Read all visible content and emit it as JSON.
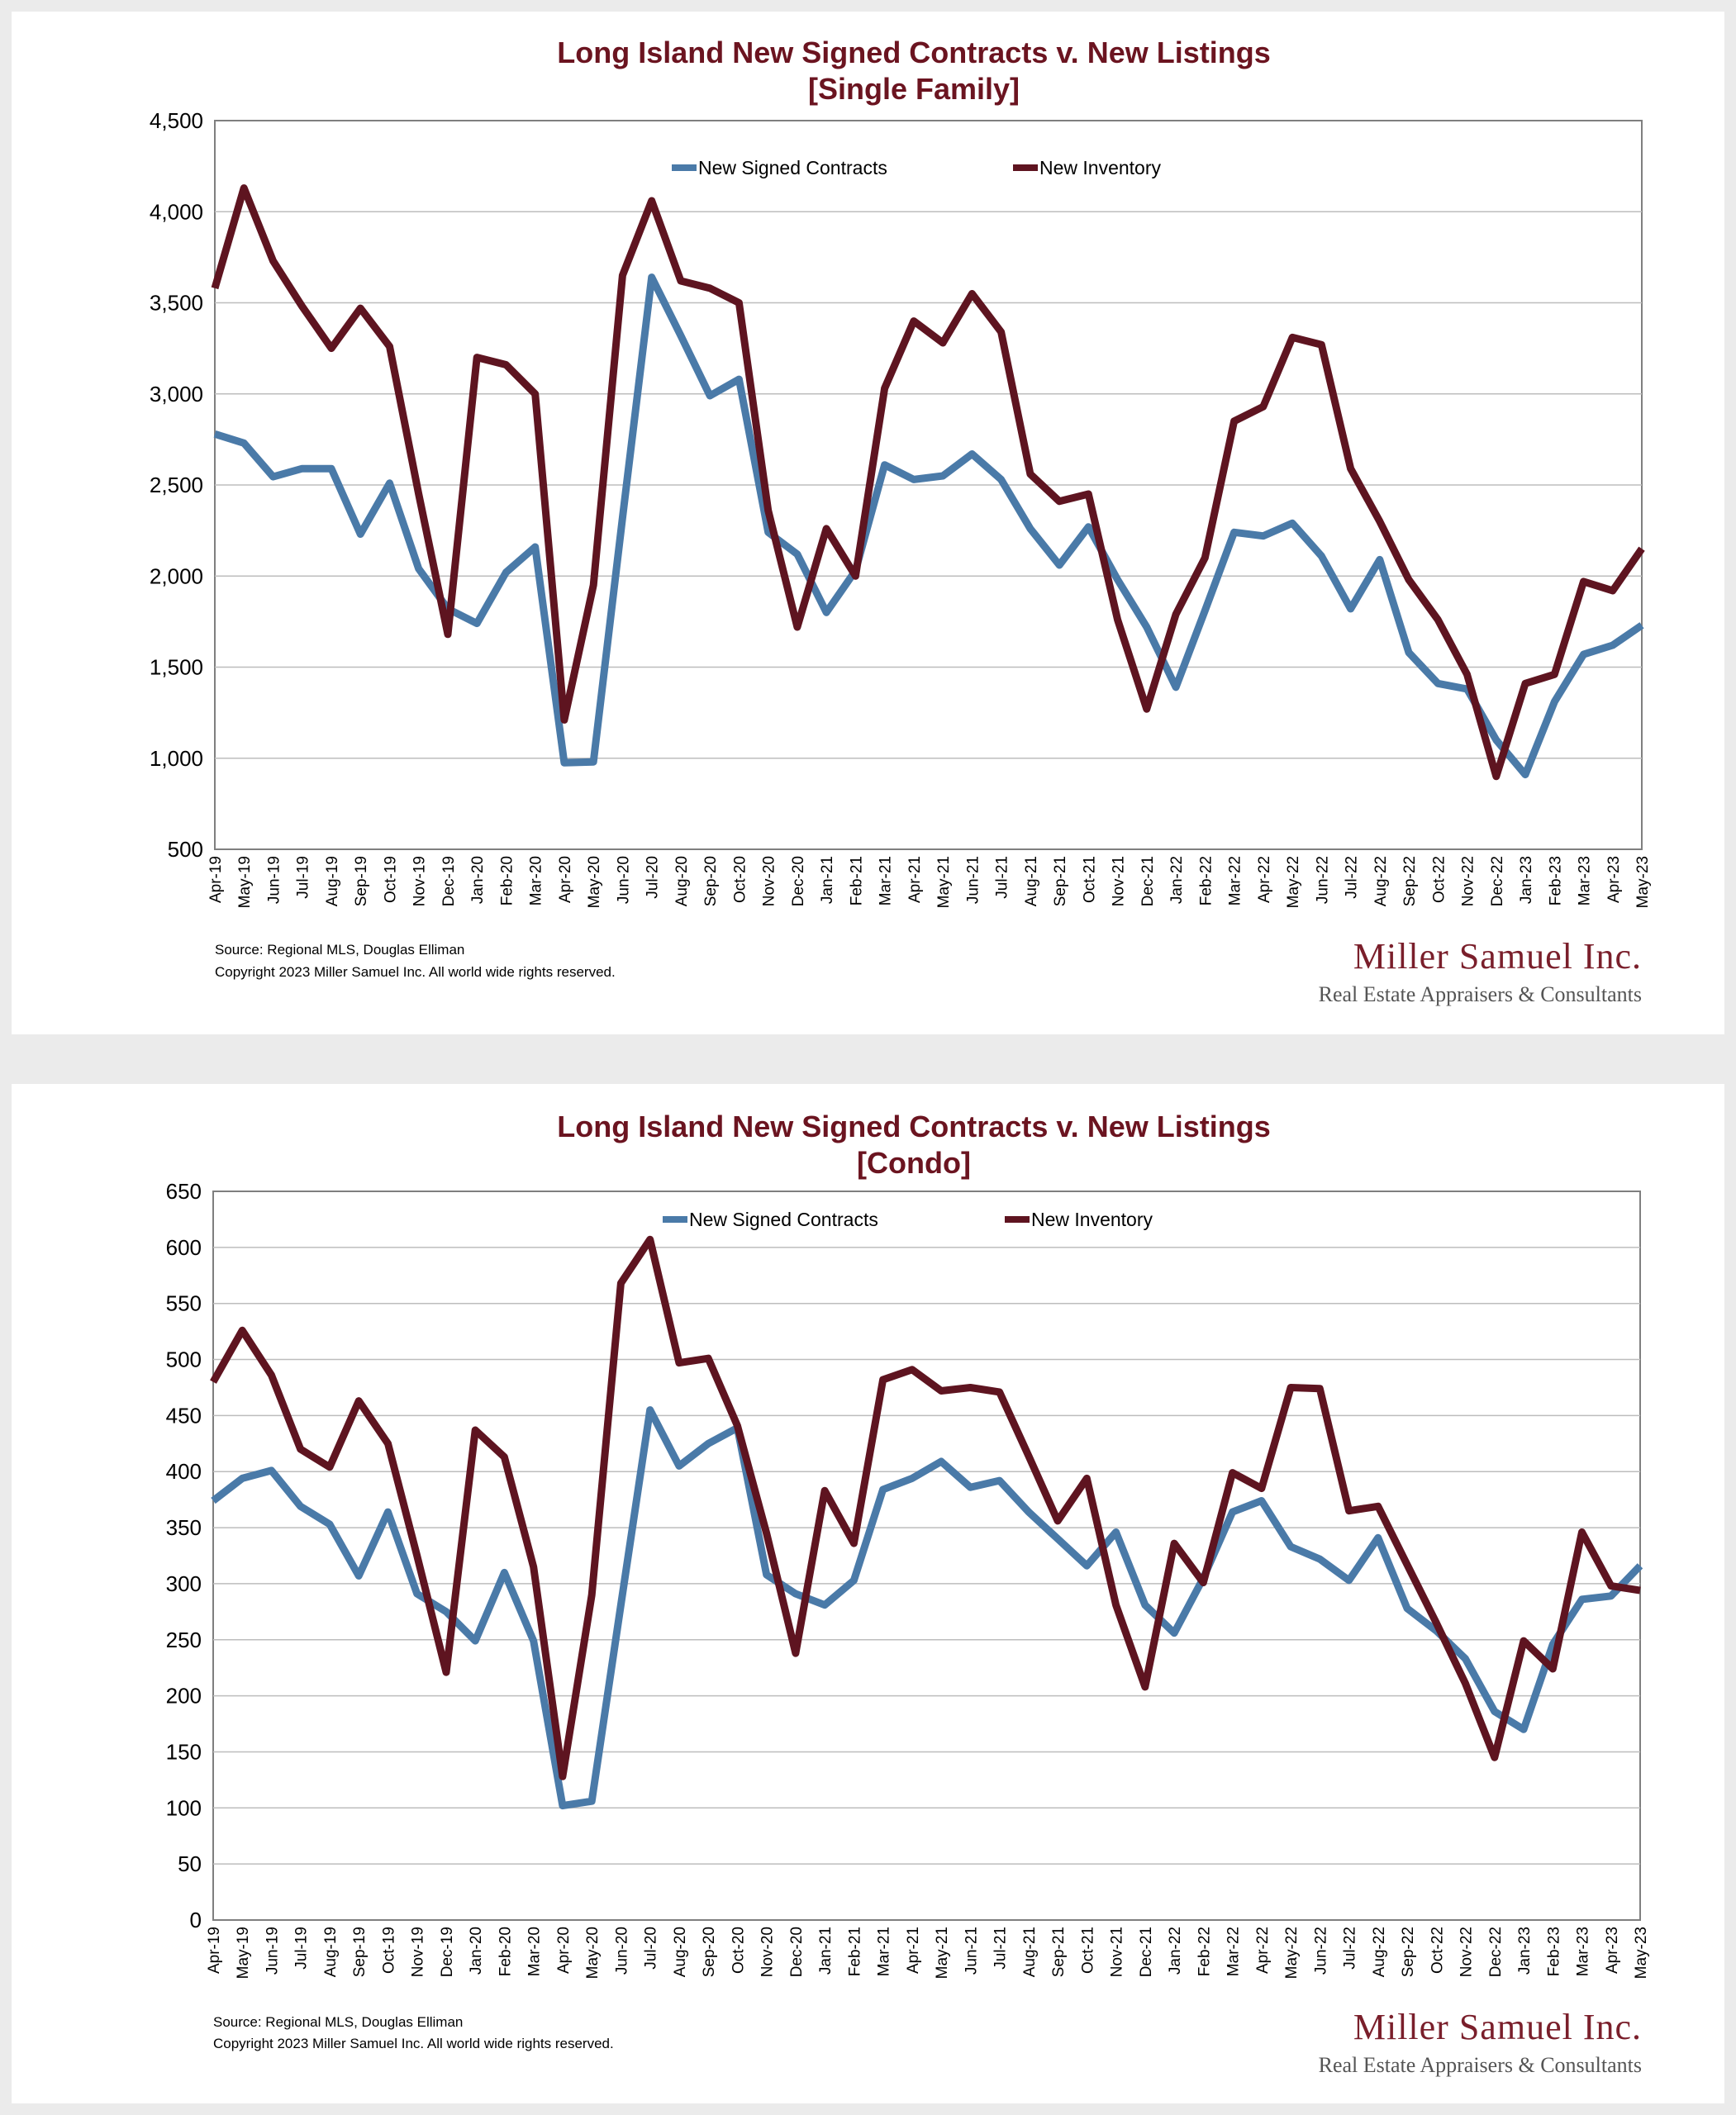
{
  "colors": {
    "contracts": "#4a7aa8",
    "inventory": "#5e1420",
    "title": "#6b1420",
    "grid": "#bdbdbd"
  },
  "footer": {
    "source": "Source: Regional MLS, Douglas Elliman",
    "copyright": "Copyright 2023 Miller Samuel Inc.  All world wide rights reserved.",
    "brand": "Miller Samuel Inc.",
    "brand_sub": "Real Estate Appraisers & Consultants"
  },
  "chart_data": [
    {
      "type": "line",
      "title": "Long Island New Signed Contracts v. New Listings",
      "subtitle": "[Single Family]",
      "xlabel": "",
      "ylabel": "",
      "ylim": [
        500,
        4500
      ],
      "yticks": [
        500,
        1000,
        1500,
        2000,
        2500,
        3000,
        3500,
        4000,
        4500
      ],
      "ytick_labels": [
        "500",
        "1,000",
        "1,500",
        "2,000",
        "2,500",
        "3,000",
        "3,500",
        "4,000",
        "4,500"
      ],
      "grid": true,
      "legend": "top-center",
      "categories": [
        "Apr-19",
        "May-19",
        "Jun-19",
        "Jul-19",
        "Aug-19",
        "Sep-19",
        "Oct-19",
        "Nov-19",
        "Dec-19",
        "Jan-20",
        "Feb-20",
        "Mar-20",
        "Apr-20",
        "May-20",
        "Jun-20",
        "Jul-20",
        "Aug-20",
        "Sep-20",
        "Oct-20",
        "Nov-20",
        "Dec-20",
        "Jan-21",
        "Feb-21",
        "Mar-21",
        "Apr-21",
        "May-21",
        "Jun-21",
        "Jul-21",
        "Aug-21",
        "Sep-21",
        "Oct-21",
        "Nov-21",
        "Dec-21",
        "Jan-22",
        "Feb-22",
        "Mar-22",
        "Apr-22",
        "May-22",
        "Jun-22",
        "Jul-22",
        "Aug-22",
        "Sep-22",
        "Oct-22",
        "Nov-22",
        "Dec-22",
        "Jan-23",
        "Feb-23",
        "Mar-23",
        "Apr-23",
        "May-23"
      ],
      "series": [
        {
          "name": "New Signed Contracts",
          "values": [
            2780,
            2730,
            2545,
            2590,
            2590,
            2230,
            2510,
            2040,
            1820,
            1740,
            2020,
            2160,
            975,
            980,
            2320,
            3640,
            3320,
            2990,
            3080,
            2240,
            2120,
            1800,
            2030,
            2610,
            2530,
            2550,
            2670,
            2530,
            2260,
            2060,
            2270,
            1980,
            1720,
            1390,
            1810,
            2240,
            2220,
            2290,
            2110,
            1820,
            2090,
            1580,
            1410,
            1380,
            1100,
            910,
            1310,
            1570,
            1620,
            1730
          ]
        },
        {
          "name": "New Inventory",
          "values": [
            3580,
            4130,
            3730,
            3480,
            3250,
            3470,
            3260,
            2450,
            1680,
            3200,
            3160,
            3000,
            1210,
            1950,
            3650,
            4060,
            3620,
            3580,
            3500,
            2360,
            1720,
            2260,
            2000,
            3030,
            3400,
            3280,
            3550,
            3340,
            2560,
            2410,
            2450,
            1760,
            1270,
            1790,
            2100,
            2850,
            2930,
            3310,
            3270,
            2590,
            2300,
            1980,
            1760,
            1460,
            900,
            1410,
            1460,
            1970,
            1920,
            2150
          ]
        }
      ]
    },
    {
      "type": "line",
      "title": "Long Island New Signed Contracts v. New Listings",
      "subtitle": "[Condo]",
      "xlabel": "",
      "ylabel": "",
      "ylim": [
        0,
        650
      ],
      "yticks": [
        0,
        50,
        100,
        150,
        200,
        250,
        300,
        350,
        400,
        450,
        500,
        550,
        600,
        650
      ],
      "ytick_labels": [
        "0",
        "50",
        "100",
        "150",
        "200",
        "250",
        "300",
        "350",
        "400",
        "450",
        "500",
        "550",
        "600",
        "650"
      ],
      "grid": true,
      "legend": "top-center",
      "categories": [
        "Apr-19",
        "May-19",
        "Jun-19",
        "Jul-19",
        "Aug-19",
        "Sep-19",
        "Oct-19",
        "Nov-19",
        "Dec-19",
        "Jan-20",
        "Feb-20",
        "Mar-20",
        "Apr-20",
        "May-20",
        "Jun-20",
        "Jul-20",
        "Aug-20",
        "Sep-20",
        "Oct-20",
        "Nov-20",
        "Dec-20",
        "Jan-21",
        "Feb-21",
        "Mar-21",
        "Apr-21",
        "May-21",
        "Jun-21",
        "Jul-21",
        "Aug-21",
        "Sep-21",
        "Oct-21",
        "Nov-21",
        "Dec-21",
        "Jan-22",
        "Feb-22",
        "Mar-22",
        "Apr-22",
        "May-22",
        "Jun-22",
        "Jul-22",
        "Aug-22",
        "Sep-22",
        "Oct-22",
        "Nov-22",
        "Dec-22",
        "Jan-23",
        "Feb-23",
        "Mar-23",
        "Apr-23",
        "May-23"
      ],
      "series": [
        {
          "name": "New Signed Contracts",
          "values": [
            374,
            394,
            401,
            369,
            353,
            307,
            364,
            291,
            275,
            249,
            310,
            249,
            102,
            106,
            281,
            455,
            405,
            425,
            439,
            308,
            291,
            281,
            303,
            384,
            394,
            409,
            386,
            392,
            364,
            340,
            316,
            346,
            281,
            256,
            305,
            364,
            374,
            333,
            322,
            303,
            341,
            278,
            258,
            233,
            186,
            170,
            246,
            286,
            289,
            316
          ]
        },
        {
          "name": "New Inventory",
          "values": [
            480,
            526,
            486,
            420,
            404,
            463,
            425,
            325,
            221,
            437,
            413,
            315,
            128,
            290,
            568,
            607,
            497,
            501,
            441,
            345,
            238,
            383,
            336,
            482,
            491,
            472,
            475,
            471,
            414,
            356,
            394,
            281,
            208,
            336,
            301,
            399,
            385,
            475,
            474,
            365,
            369,
            317,
            265,
            211,
            145,
            249,
            224,
            346,
            298,
            294
          ]
        }
      ]
    }
  ]
}
